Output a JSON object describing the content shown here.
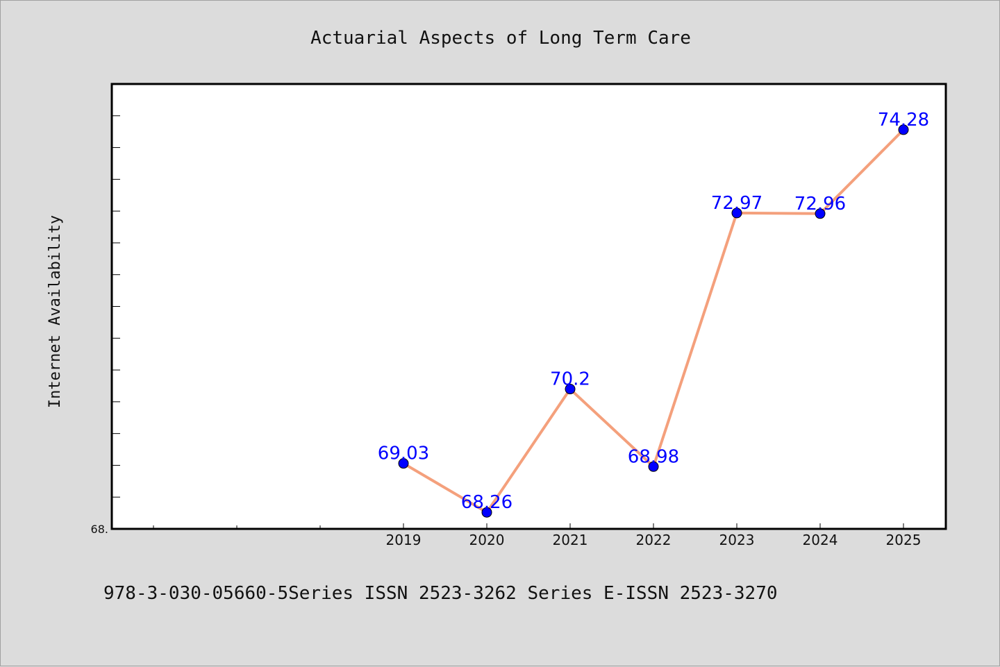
{
  "chart_data": {
    "type": "line",
    "title": "Actuarial Aspects of Long Term Care",
    "xlabel": "",
    "ylabel": "Internet Availability",
    "categories": [
      "2019",
      "2020",
      "2021",
      "2022",
      "2023",
      "2024",
      "2025"
    ],
    "series": [
      {
        "values": [
          69.03,
          68.26,
          70.2,
          68.98,
          72.97,
          72.96,
          74.28
        ],
        "labels": [
          "69.03",
          "68.26",
          "70.2",
          "68.98",
          "72.97",
          "72.96",
          "74.28"
        ]
      }
    ],
    "ylim": [
      68.0,
      75.0
    ],
    "y_tick_label": "68.",
    "line_color": "#f4a07c",
    "marker_color": "#0000ff",
    "label_color": "#0000ff",
    "grid": false
  },
  "footer": {
    "text": "978-3-030-05660-5Series ISSN 2523-3262 Series E-ISSN 2523-3270"
  }
}
